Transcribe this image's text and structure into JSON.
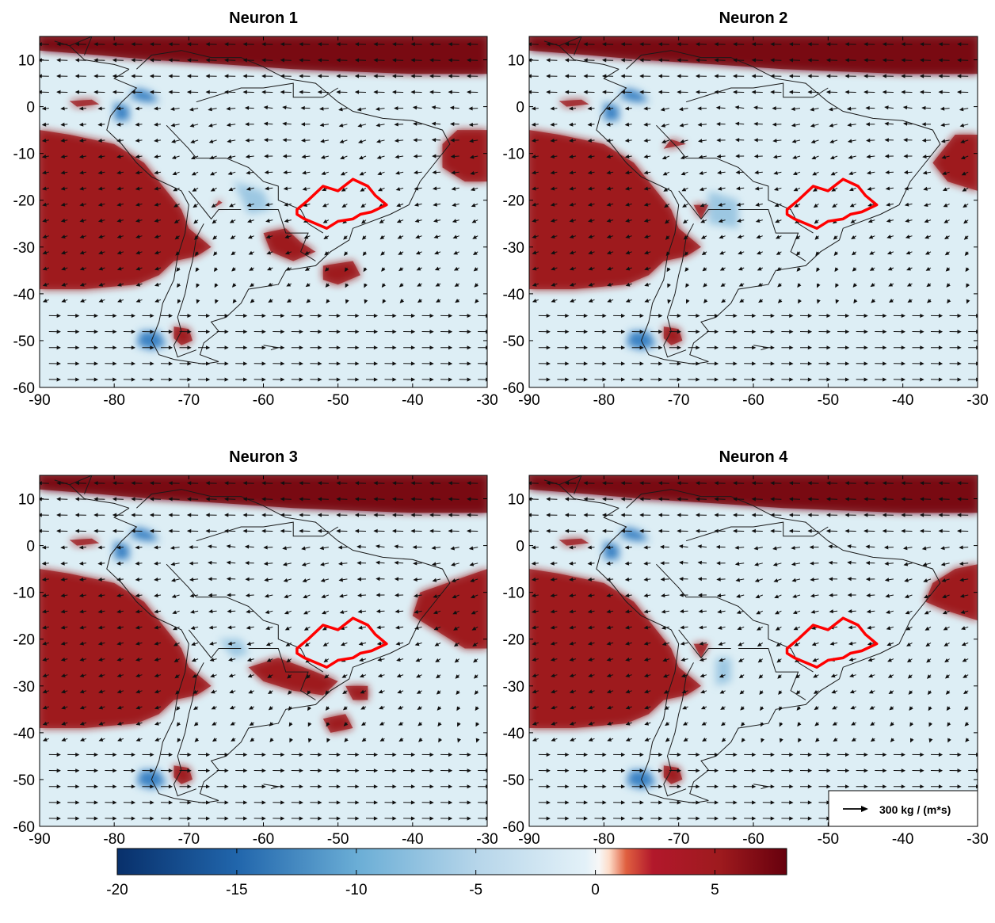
{
  "panels": [
    {
      "title": "Neuron 1",
      "variant": 1
    },
    {
      "title": "Neuron 2",
      "variant": 2
    },
    {
      "title": "Neuron 3",
      "variant": 3
    },
    {
      "title": "Neuron 4",
      "variant": 4
    }
  ],
  "x_ticks": [
    "-90",
    "-80",
    "-70",
    "-60",
    "-50",
    "-40",
    "-30"
  ],
  "y_ticks": [
    "10",
    "0",
    "-10",
    "-20",
    "-30",
    "-40",
    "-50",
    "-60"
  ],
  "x_range": [
    -90,
    -30
  ],
  "y_range": [
    -60,
    15
  ],
  "legend": {
    "label": "300 kg / (m*s)"
  },
  "colorbar": {
    "ticks": [
      "-20",
      "-15",
      "-10",
      "-5",
      "0",
      "5"
    ],
    "range": [
      -20,
      8
    ]
  },
  "colors": {
    "positive": "#9e1a1e",
    "positive_dark": "#7a0a12",
    "light": "#ddeef5",
    "negative": "#1f6bb5",
    "basin_outline": "#ff0000"
  }
}
